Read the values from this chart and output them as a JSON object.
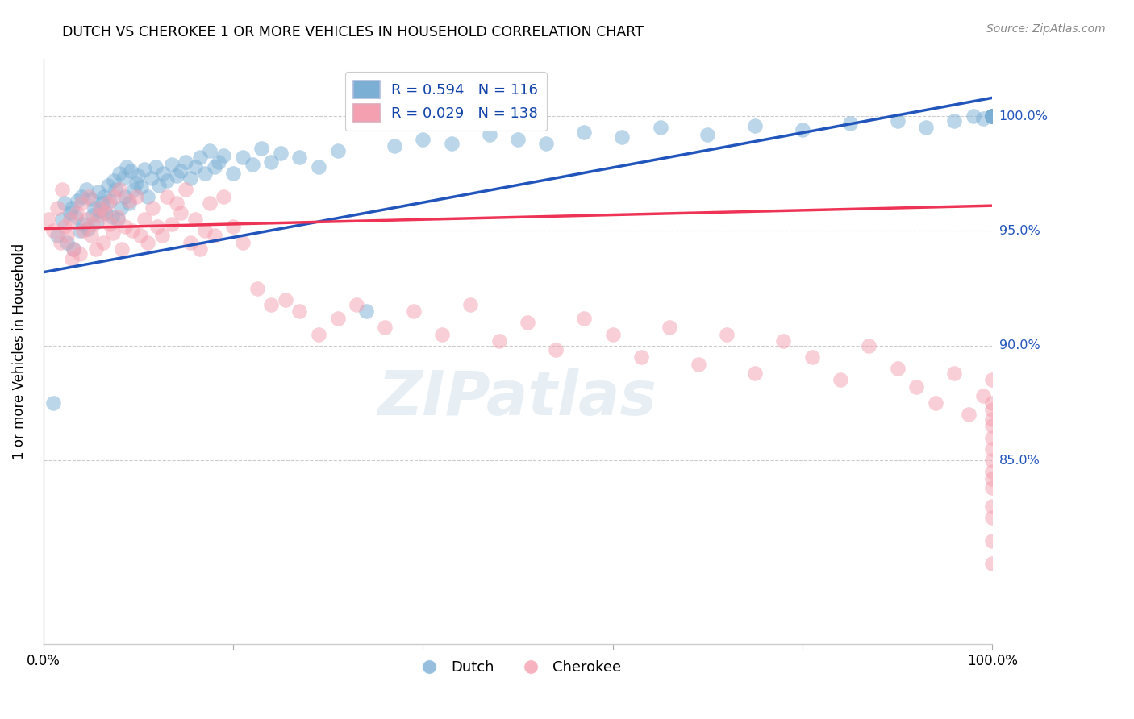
{
  "title": "DUTCH VS CHEROKEE 1 OR MORE VEHICLES IN HOUSEHOLD CORRELATION CHART",
  "source": "Source: ZipAtlas.com",
  "ylabel": "1 or more Vehicles in Household",
  "ytick_labels": [
    "85.0%",
    "90.0%",
    "95.0%",
    "100.0%"
  ],
  "ytick_values": [
    85.0,
    90.0,
    95.0,
    100.0
  ],
  "xlim": [
    0.0,
    100.0
  ],
  "ylim": [
    77.0,
    102.5
  ],
  "blue_color": "#7BAFD4",
  "pink_color": "#F4A0B0",
  "trendline_blue_color": "#2255BB",
  "trendline_pink_color": "#EE3355",
  "watermark_text": "ZIPatlas",
  "blue_trend_x": [
    0.0,
    100.0
  ],
  "blue_trend_y": [
    93.2,
    100.8
  ],
  "pink_trend_x": [
    0.0,
    100.0
  ],
  "pink_trend_y": [
    95.1,
    96.1
  ],
  "blue_scatter_x": [
    1.0,
    1.5,
    2.0,
    2.2,
    2.5,
    2.8,
    3.0,
    3.2,
    3.4,
    3.6,
    3.8,
    4.0,
    4.2,
    4.5,
    4.7,
    5.0,
    5.2,
    5.4,
    5.6,
    5.8,
    6.0,
    6.2,
    6.4,
    6.6,
    6.8,
    7.0,
    7.2,
    7.4,
    7.6,
    7.8,
    8.0,
    8.2,
    8.4,
    8.6,
    8.8,
    9.0,
    9.2,
    9.5,
    9.8,
    10.0,
    10.3,
    10.6,
    11.0,
    11.4,
    11.8,
    12.2,
    12.6,
    13.0,
    13.5,
    14.0,
    14.5,
    15.0,
    15.5,
    16.0,
    16.5,
    17.0,
    17.5,
    18.0,
    18.5,
    19.0,
    20.0,
    21.0,
    22.0,
    23.0,
    24.0,
    25.0,
    27.0,
    29.0,
    31.0,
    34.0,
    37.0,
    40.0,
    43.0,
    47.0,
    50.0,
    53.0,
    57.0,
    61.0,
    65.0,
    70.0,
    75.0,
    80.0,
    85.0,
    90.0,
    93.0,
    96.0,
    98.0,
    99.0,
    100.0,
    100.0,
    100.0,
    100.0,
    100.0,
    100.0,
    100.0,
    100.0,
    100.0,
    100.0,
    100.0,
    100.0
  ],
  "blue_scatter_y": [
    87.5,
    94.8,
    95.5,
    96.2,
    94.5,
    95.8,
    96.0,
    94.2,
    95.6,
    96.3,
    95.0,
    96.5,
    95.3,
    96.8,
    95.1,
    96.4,
    95.7,
    96.0,
    95.4,
    96.7,
    95.9,
    96.2,
    96.5,
    95.8,
    97.0,
    96.3,
    95.6,
    97.2,
    96.8,
    95.5,
    97.5,
    96.0,
    97.3,
    96.5,
    97.8,
    96.2,
    97.6,
    96.8,
    97.1,
    97.4,
    96.9,
    97.7,
    96.5,
    97.3,
    97.8,
    97.0,
    97.5,
    97.2,
    97.9,
    97.4,
    97.6,
    98.0,
    97.3,
    97.8,
    98.2,
    97.5,
    98.5,
    97.8,
    98.0,
    98.3,
    97.5,
    98.2,
    97.9,
    98.6,
    98.0,
    98.4,
    98.2,
    97.8,
    98.5,
    91.5,
    98.7,
    99.0,
    98.8,
    99.2,
    99.0,
    98.8,
    99.3,
    99.1,
    99.5,
    99.2,
    99.6,
    99.4,
    99.7,
    99.8,
    99.5,
    99.8,
    100.0,
    99.9,
    100.0,
    100.0,
    100.0,
    100.0,
    100.0,
    100.0,
    100.0,
    100.0,
    100.0,
    100.0,
    100.0,
    100.0
  ],
  "pink_scatter_x": [
    0.5,
    1.0,
    1.5,
    1.8,
    2.0,
    2.2,
    2.5,
    2.8,
    3.0,
    3.2,
    3.5,
    3.8,
    4.0,
    4.2,
    4.5,
    4.8,
    5.0,
    5.2,
    5.5,
    5.8,
    6.0,
    6.3,
    6.5,
    6.8,
    7.0,
    7.3,
    7.5,
    7.8,
    8.0,
    8.3,
    8.6,
    9.0,
    9.4,
    9.8,
    10.2,
    10.6,
    11.0,
    11.5,
    12.0,
    12.5,
    13.0,
    13.5,
    14.0,
    14.5,
    15.0,
    15.5,
    16.0,
    16.5,
    17.0,
    17.5,
    18.0,
    19.0,
    20.0,
    21.0,
    22.5,
    24.0,
    25.5,
    27.0,
    29.0,
    31.0,
    33.0,
    36.0,
    39.0,
    42.0,
    45.0,
    48.0,
    51.0,
    54.0,
    57.0,
    60.0,
    63.0,
    66.0,
    69.0,
    72.0,
    75.0,
    78.0,
    81.0,
    84.0,
    87.0,
    90.0,
    92.0,
    94.0,
    96.0,
    97.5,
    99.0,
    100.0,
    100.0,
    100.0,
    100.0,
    100.0,
    100.0,
    100.0,
    100.0,
    100.0,
    100.0,
    100.0,
    100.0,
    100.0,
    100.0,
    100.0
  ],
  "pink_scatter_y": [
    95.5,
    95.0,
    96.0,
    94.5,
    96.8,
    95.2,
    94.8,
    95.5,
    93.8,
    94.2,
    95.8,
    94.0,
    96.2,
    95.0,
    95.5,
    96.5,
    94.8,
    95.3,
    94.2,
    95.7,
    96.0,
    94.5,
    95.8,
    96.2,
    95.3,
    94.9,
    96.5,
    95.6,
    96.8,
    94.2,
    95.2,
    96.3,
    95.0,
    96.5,
    94.8,
    95.5,
    94.5,
    96.0,
    95.2,
    94.8,
    96.5,
    95.3,
    96.2,
    95.8,
    96.8,
    94.5,
    95.5,
    94.2,
    95.0,
    96.2,
    94.8,
    96.5,
    95.2,
    94.5,
    92.5,
    91.8,
    92.0,
    91.5,
    90.5,
    91.2,
    91.8,
    90.8,
    91.5,
    90.5,
    91.8,
    90.2,
    91.0,
    89.8,
    91.2,
    90.5,
    89.5,
    90.8,
    89.2,
    90.5,
    88.8,
    90.2,
    89.5,
    88.5,
    90.0,
    89.0,
    88.2,
    87.5,
    88.8,
    87.0,
    87.8,
    88.5,
    87.5,
    86.5,
    87.2,
    86.0,
    85.5,
    86.8,
    85.0,
    84.5,
    83.8,
    84.2,
    83.0,
    82.5,
    81.5,
    80.5
  ]
}
